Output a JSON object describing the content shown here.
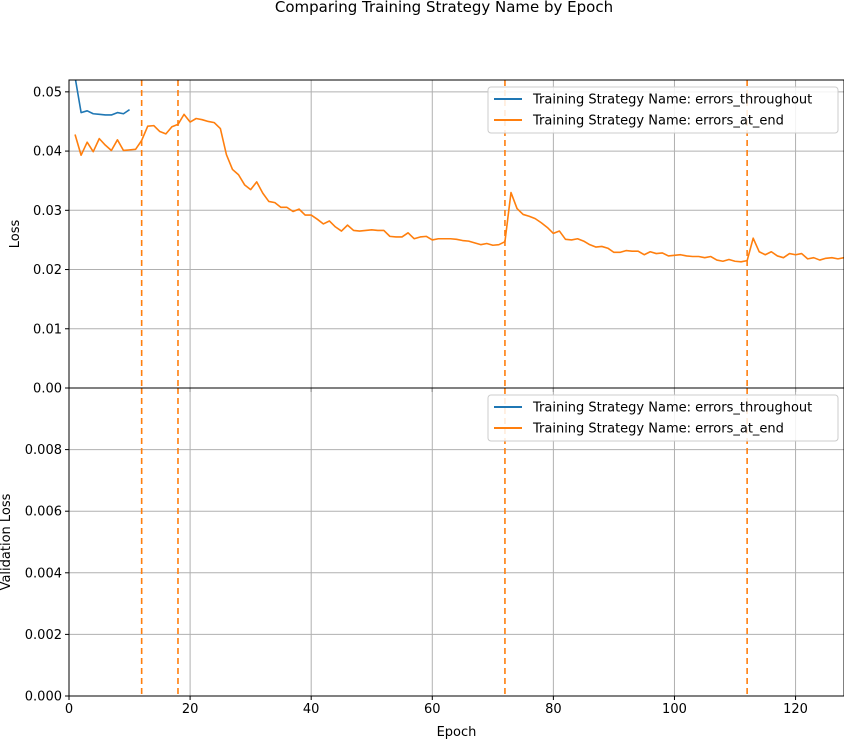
{
  "figure": {
    "title": "Comparing Training Strategy Name by Epoch"
  },
  "chart_data": [
    {
      "type": "line",
      "title": "",
      "xlabel": "",
      "ylabel": "Loss",
      "xlim": [
        0,
        128
      ],
      "ylim": [
        0.0,
        0.052
      ],
      "x_ticks": [
        0,
        20,
        40,
        60,
        80,
        100,
        120
      ],
      "x_tick_labels": [
        "",
        "",
        "",
        "",
        "",
        "",
        ""
      ],
      "y_ticks": [
        0.0,
        0.01,
        0.02,
        0.03,
        0.04,
        0.05
      ],
      "y_tick_labels": [
        "0.00",
        "0.01",
        "0.02",
        "0.03",
        "0.04",
        "0.05"
      ],
      "grid": true,
      "legend_placement": "top-right",
      "series": [
        {
          "name": "Training Strategy Name: errors_throughout",
          "color": "#1f77b4",
          "x": [
            0,
            1,
            2,
            3,
            4,
            5,
            6,
            7,
            8,
            9,
            10
          ],
          "y": [
            0.056,
            0.0525,
            0.0465,
            0.0468,
            0.0463,
            0.0462,
            0.0461,
            0.0461,
            0.0465,
            0.0463,
            0.047
          ]
        },
        {
          "name": "Training Strategy Name: errors_at_end",
          "color": "#ff7f0e",
          "x": [
            1,
            2,
            3,
            4,
            5,
            6,
            7,
            8,
            9,
            10,
            11,
            12,
            13,
            14,
            15,
            16,
            17,
            18,
            19,
            20,
            21,
            22,
            23,
            24,
            25,
            26,
            27,
            28,
            29,
            30,
            31,
            32,
            33,
            34,
            35,
            36,
            37,
            38,
            39,
            40,
            41,
            42,
            43,
            44,
            45,
            46,
            47,
            48,
            49,
            50,
            51,
            52,
            53,
            54,
            55,
            56,
            57,
            58,
            59,
            60,
            61,
            62,
            63,
            64,
            65,
            66,
            67,
            68,
            69,
            70,
            71,
            72,
            73,
            74,
            75,
            76,
            77,
            78,
            79,
            80,
            81,
            82,
            83,
            84,
            85,
            86,
            87,
            88,
            89,
            90,
            91,
            92,
            93,
            94,
            95,
            96,
            97,
            98,
            99,
            100,
            101,
            102,
            103,
            104,
            105,
            106,
            107,
            108,
            109,
            110,
            111,
            112,
            113,
            114,
            115,
            116,
            117,
            118,
            119,
            120,
            121,
            122,
            123,
            124,
            125,
            126,
            127,
            128
          ],
          "y": [
            0.0428,
            0.0393,
            0.0415,
            0.0399,
            0.0421,
            0.041,
            0.0401,
            0.0419,
            0.0401,
            0.0402,
            0.0403,
            0.0418,
            0.0442,
            0.0443,
            0.0433,
            0.0429,
            0.0441,
            0.0445,
            0.0462,
            0.0449,
            0.0455,
            0.0453,
            0.045,
            0.0448,
            0.0438,
            0.0394,
            0.0369,
            0.036,
            0.0343,
            0.0335,
            0.0348,
            0.0329,
            0.0315,
            0.0313,
            0.0305,
            0.0305,
            0.0298,
            0.0302,
            0.0292,
            0.0292,
            0.0285,
            0.0277,
            0.0282,
            0.0272,
            0.0265,
            0.0275,
            0.0266,
            0.0265,
            0.0266,
            0.0267,
            0.0266,
            0.0266,
            0.0256,
            0.0255,
            0.0255,
            0.0262,
            0.0252,
            0.0255,
            0.0256,
            0.025,
            0.0252,
            0.0252,
            0.0252,
            0.0251,
            0.0249,
            0.0248,
            0.0245,
            0.0242,
            0.0244,
            0.0241,
            0.0242,
            0.0247,
            0.033,
            0.0303,
            0.0293,
            0.029,
            0.0286,
            0.0279,
            0.0271,
            0.0261,
            0.0265,
            0.0251,
            0.025,
            0.0252,
            0.0248,
            0.0242,
            0.0238,
            0.0239,
            0.0236,
            0.0229,
            0.0229,
            0.0232,
            0.0231,
            0.0231,
            0.0225,
            0.023,
            0.0227,
            0.0228,
            0.0223,
            0.0224,
            0.0225,
            0.0223,
            0.0222,
            0.0222,
            0.022,
            0.0222,
            0.0216,
            0.0214,
            0.0217,
            0.0214,
            0.0213,
            0.0215,
            0.0253,
            0.023,
            0.0225,
            0.023,
            0.0223,
            0.022,
            0.0227,
            0.0225,
            0.0227,
            0.0218,
            0.022,
            0.0216,
            0.0219,
            0.022,
            0.0218,
            0.022
          ]
        }
      ],
      "vlines": [
        {
          "x": 12,
          "color": "#ff7f0e",
          "style": "dashed"
        },
        {
          "x": 18,
          "color": "#ff7f0e",
          "style": "dashed"
        },
        {
          "x": 72,
          "color": "#ff7f0e",
          "style": "dashed"
        },
        {
          "x": 112,
          "color": "#ff7f0e",
          "style": "dashed"
        }
      ]
    },
    {
      "type": "line",
      "title": "",
      "xlabel": "Epoch",
      "ylabel": "Validation Loss",
      "xlim": [
        0,
        128
      ],
      "ylim": [
        0.0,
        0.01
      ],
      "x_ticks": [
        0,
        20,
        40,
        60,
        80,
        100,
        120
      ],
      "x_tick_labels": [
        "0",
        "20",
        "40",
        "60",
        "80",
        "100",
        "120"
      ],
      "y_ticks": [
        0.0,
        0.002,
        0.004,
        0.006,
        0.008
      ],
      "y_tick_labels": [
        "0.000",
        "0.002",
        "0.004",
        "0.006",
        "0.008"
      ],
      "grid": true,
      "legend_placement": "top-right",
      "series": [
        {
          "name": "Training Strategy Name: errors_throughout",
          "color": "#1f77b4",
          "x": [],
          "y": []
        },
        {
          "name": "Training Strategy Name: errors_at_end",
          "color": "#ff7f0e",
          "x": [],
          "y": []
        }
      ],
      "vlines": [
        {
          "x": 12,
          "color": "#ff7f0e",
          "style": "dashed"
        },
        {
          "x": 18,
          "color": "#ff7f0e",
          "style": "dashed"
        },
        {
          "x": 72,
          "color": "#ff7f0e",
          "style": "dashed"
        },
        {
          "x": 112,
          "color": "#ff7f0e",
          "style": "dashed"
        }
      ]
    }
  ]
}
